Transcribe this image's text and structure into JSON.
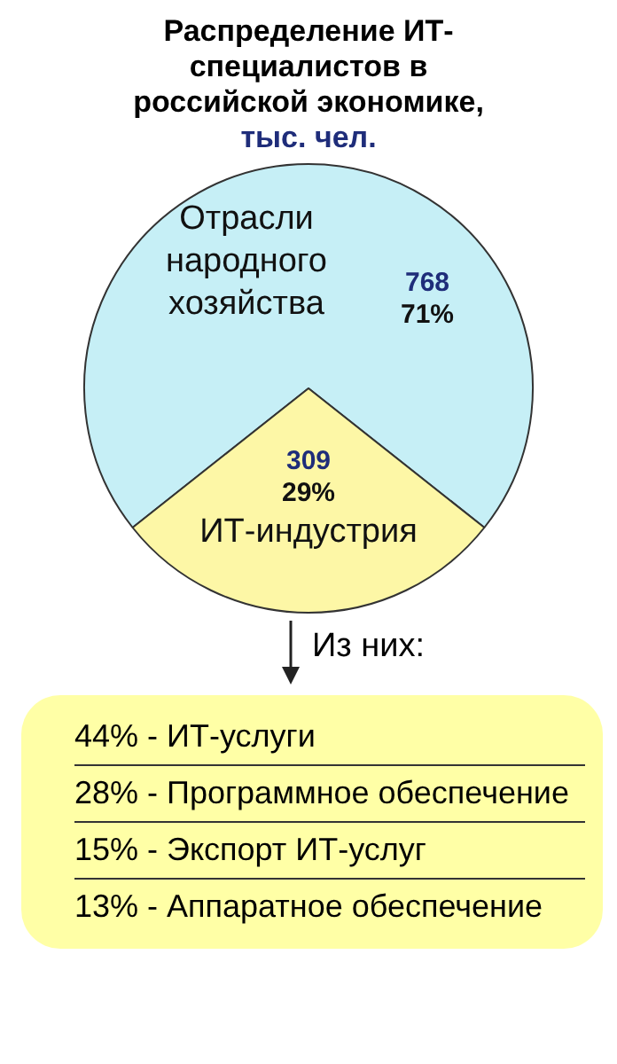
{
  "chart_data": [
    {
      "type": "pie",
      "title": "Распределение ИТ-специалистов в российской экономике,",
      "subtitle": "тыс. чел.",
      "categories": [
        "Отрасли народного хозяйства",
        "ИТ-индустрия"
      ],
      "values": [
        768,
        309
      ],
      "colors": [
        "#c6eff6",
        "#fdf7a6"
      ],
      "value_labels": [
        "768 71%",
        "309 29%"
      ],
      "legend": false
    },
    {
      "type": "other",
      "title": "Из них:",
      "annotations": [
        "44% - ИТ-услуги",
        "28% - Программное обеспечение",
        "15% - Экспорт ИТ-услуг",
        "13% - Аппаратное обеспечение"
      ]
    }
  ]
}
